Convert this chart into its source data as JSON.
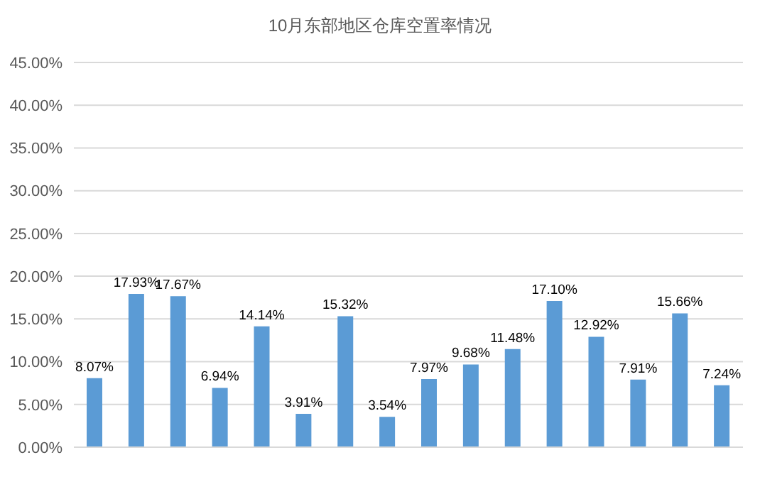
{
  "chart_data": {
    "type": "bar",
    "title": "10月东部地区仓库空置率情况",
    "categories": [
      null,
      null,
      null,
      null,
      null,
      null,
      null,
      null,
      null,
      null,
      null,
      null,
      null,
      null,
      null,
      null
    ],
    "values": [
      8.07,
      17.93,
      17.67,
      6.94,
      14.14,
      3.91,
      15.32,
      3.54,
      7.97,
      9.68,
      11.48,
      17.1,
      12.92,
      7.91,
      15.66,
      7.24
    ],
    "value_labels": [
      "8.07%",
      "17.93%",
      "17.67%",
      "6.94%",
      "14.14%",
      "3.91%",
      "15.32%",
      "3.54%",
      "7.97%",
      "9.68%",
      "11.48%",
      "17.10%",
      "12.92%",
      "7.91%",
      "15.66%",
      "7.24%"
    ],
    "color": "#5b9bd5",
    "ylim": [
      0,
      45
    ],
    "yticks": [
      {
        "value": 0,
        "label": "0.00%"
      },
      {
        "value": 5,
        "label": "5.00%"
      },
      {
        "value": 10,
        "label": "10.00%"
      },
      {
        "value": 15,
        "label": "15.00%"
      },
      {
        "value": 20,
        "label": "20.00%"
      },
      {
        "value": 25,
        "label": "25.00%"
      },
      {
        "value": 30,
        "label": "30.00%"
      },
      {
        "value": 35,
        "label": "35.00%"
      },
      {
        "value": 40,
        "label": "40.00%"
      },
      {
        "value": 45,
        "label": "45.00%"
      }
    ],
    "grid": "y"
  }
}
